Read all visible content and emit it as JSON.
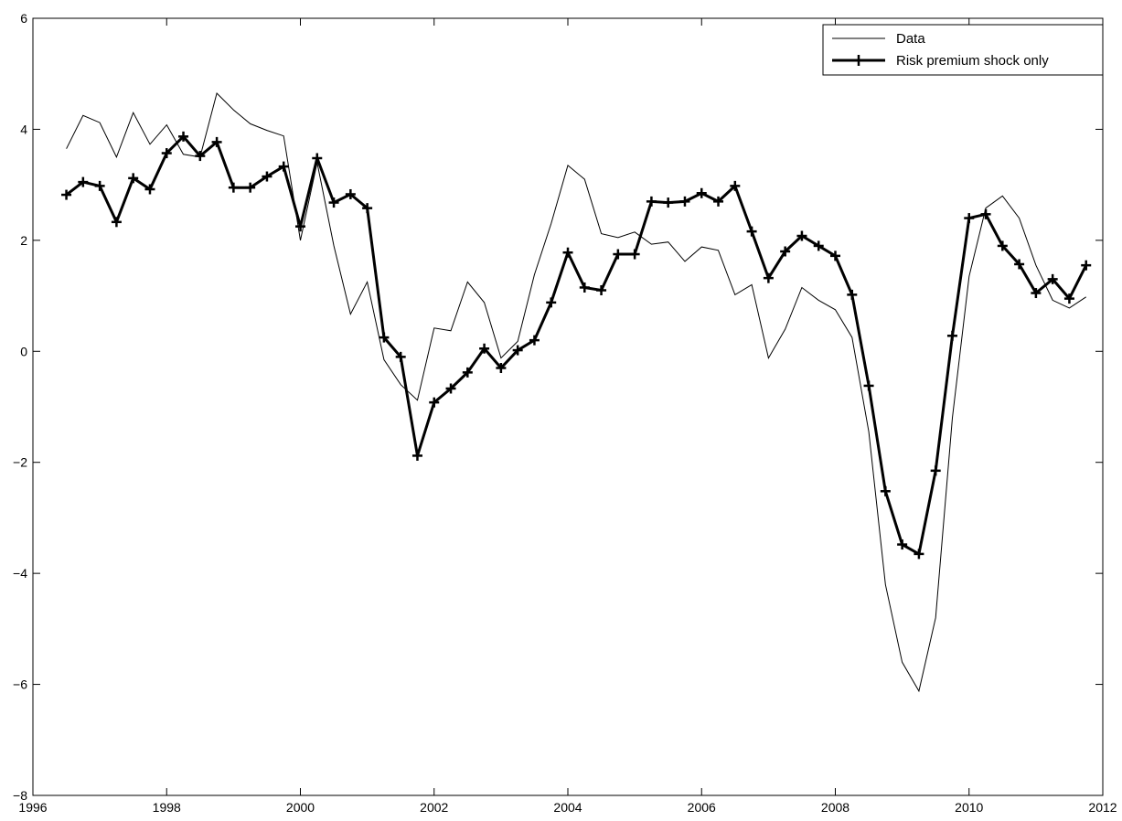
{
  "chart_data": {
    "type": "line",
    "title": "",
    "xlabel": "",
    "ylabel": "",
    "xlim": [
      1996,
      2012
    ],
    "ylim": [
      -8,
      6
    ],
    "xticks": [
      "1996",
      "1998",
      "2000",
      "2002",
      "2004",
      "2006",
      "2008",
      "2010",
      "2012"
    ],
    "yticks": [
      "−8",
      "−6",
      "−4",
      "−2",
      "0",
      "2",
      "4",
      "6"
    ],
    "grid": false,
    "legend_position": "top-right",
    "series": [
      {
        "name": "Data",
        "style": "thin",
        "color": "#000000",
        "x": [
          1996.5,
          1996.75,
          1997.0,
          1997.25,
          1997.5,
          1997.75,
          1998.0,
          1998.25,
          1998.5,
          1998.75,
          1999.0,
          1999.25,
          1999.5,
          1999.75,
          2000.0,
          2000.25,
          2000.5,
          2000.75,
          2001.0,
          2001.25,
          2001.5,
          2001.75,
          2002.0,
          2002.25,
          2002.5,
          2002.75,
          2003.0,
          2003.25,
          2003.5,
          2003.75,
          2004.0,
          2004.25,
          2004.5,
          2004.75,
          2005.0,
          2005.25,
          2005.5,
          2005.75,
          2006.0,
          2006.25,
          2006.5,
          2006.75,
          2007.0,
          2007.25,
          2007.5,
          2007.75,
          2008.0,
          2008.25,
          2008.5,
          2008.75,
          2009.0,
          2009.25,
          2009.5,
          2009.75,
          2010.0,
          2010.25,
          2010.5,
          2010.75,
          2011.0,
          2011.25,
          2011.5,
          2011.75
        ],
        "values": [
          3.65,
          4.25,
          4.12,
          3.5,
          4.3,
          3.73,
          4.08,
          3.55,
          3.5,
          4.65,
          4.35,
          4.1,
          3.98,
          3.88,
          2.0,
          3.4,
          1.9,
          0.67,
          1.25,
          -0.15,
          -0.6,
          -0.88,
          0.42,
          0.37,
          1.25,
          0.88,
          -0.12,
          0.18,
          1.38,
          2.3,
          3.35,
          3.1,
          2.12,
          2.05,
          2.15,
          1.93,
          1.97,
          1.62,
          1.88,
          1.82,
          1.02,
          1.2,
          -0.12,
          0.4,
          1.15,
          0.92,
          0.75,
          0.25,
          -1.45,
          -4.2,
          -5.6,
          -6.12,
          -4.8,
          -1.2,
          1.35,
          2.58,
          2.8,
          2.4,
          1.55,
          0.92,
          0.78,
          0.98
        ]
      },
      {
        "name": "Risk premium shock only",
        "style": "thick-plus",
        "color": "#000000",
        "x": [
          1996.5,
          1996.75,
          1997.0,
          1997.25,
          1997.5,
          1997.75,
          1998.0,
          1998.25,
          1998.5,
          1998.75,
          1999.0,
          1999.25,
          1999.5,
          1999.75,
          2000.0,
          2000.25,
          2000.5,
          2000.75,
          2001.0,
          2001.25,
          2001.5,
          2001.75,
          2002.0,
          2002.25,
          2002.5,
          2002.75,
          2003.0,
          2003.25,
          2003.5,
          2003.75,
          2004.0,
          2004.25,
          2004.5,
          2004.75,
          2005.0,
          2005.25,
          2005.5,
          2005.75,
          2006.0,
          2006.25,
          2006.5,
          2006.75,
          2007.0,
          2007.25,
          2007.5,
          2007.75,
          2008.0,
          2008.25,
          2008.5,
          2008.75,
          2009.0,
          2009.25,
          2009.5,
          2009.75,
          2010.0,
          2010.25,
          2010.5,
          2010.75,
          2011.0,
          2011.25,
          2011.5,
          2011.75
        ],
        "values": [
          2.82,
          3.05,
          2.98,
          2.33,
          3.12,
          2.92,
          3.57,
          3.87,
          3.52,
          3.77,
          2.95,
          2.95,
          3.15,
          3.33,
          2.25,
          3.48,
          2.68,
          2.83,
          2.58,
          0.25,
          -0.1,
          -1.88,
          -0.92,
          -0.67,
          -0.38,
          0.05,
          -0.3,
          0.02,
          0.2,
          0.88,
          1.78,
          1.15,
          1.1,
          1.75,
          1.75,
          2.7,
          2.68,
          2.7,
          2.85,
          2.7,
          2.98,
          2.16,
          1.32,
          1.8,
          2.08,
          1.9,
          1.72,
          1.02,
          -0.62,
          -2.52,
          -3.48,
          -3.65,
          -2.15,
          0.28,
          2.4,
          2.47,
          1.9,
          1.57,
          1.05,
          1.3,
          0.95,
          1.55
        ]
      }
    ]
  }
}
